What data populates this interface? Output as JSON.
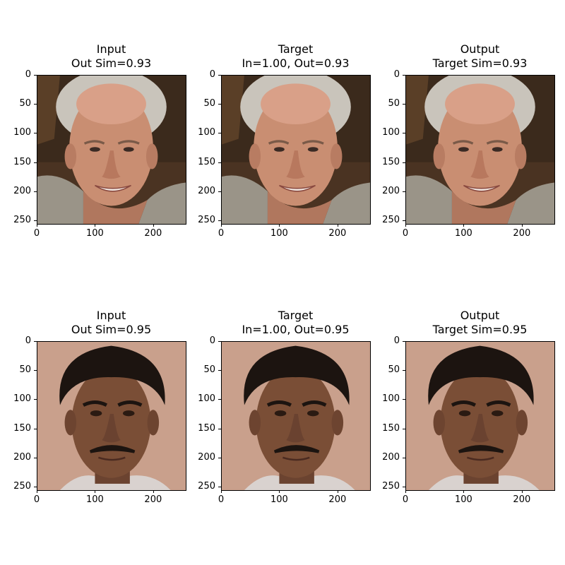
{
  "figure": {
    "rows": [
      {
        "panels": [
          {
            "title_line1": "Input",
            "title_line2": "Out Sim=0.93",
            "image": "elderly-man-face-photo"
          },
          {
            "title_line1": "Target",
            "title_line2": "In=1.00, Out=0.93",
            "image": "elderly-man-face-photo"
          },
          {
            "title_line1": "Output",
            "title_line2": "Target Sim=0.93",
            "image": "elderly-man-face-photo"
          }
        ]
      },
      {
        "panels": [
          {
            "title_line1": "Input",
            "title_line2": "Out Sim=0.95",
            "image": "man-with-mustache-face-photo"
          },
          {
            "title_line1": "Target",
            "title_line2": "In=1.00, Out=0.95",
            "image": "man-with-mustache-face-photo"
          },
          {
            "title_line1": "Output",
            "title_line2": "Target Sim=0.95",
            "image": "man-with-mustache-face-photo"
          }
        ]
      }
    ]
  },
  "chart_data": {
    "type": "image-grid",
    "grid": [
      2,
      3
    ],
    "xticks": [
      "0",
      "100",
      "200"
    ],
    "yticks": [
      "0",
      "50",
      "100",
      "150",
      "200",
      "250"
    ],
    "xlim": [
      0,
      256
    ],
    "ylim": [
      256,
      0
    ],
    "panels": [
      {
        "row": 0,
        "col": 0,
        "title": "Input\nOut Sim=0.93"
      },
      {
        "row": 0,
        "col": 1,
        "title": "Target\nIn=1.00, Out=0.93"
      },
      {
        "row": 0,
        "col": 2,
        "title": "Output\nTarget Sim=0.93"
      },
      {
        "row": 1,
        "col": 0,
        "title": "Input\nOut Sim=0.95"
      },
      {
        "row": 1,
        "col": 1,
        "title": "Target\nIn=1.00, Out=0.95"
      },
      {
        "row": 1,
        "col": 2,
        "title": "Output\nTarget Sim=0.95"
      }
    ]
  },
  "colors": {
    "row1_background": "#3b2a1c",
    "row1_skin": "#c98e72",
    "row1_hair": "#c9c4bb",
    "row1_shirt": "#9a9488",
    "row2_background": "#c9a08c",
    "row2_skin": "#7a4e36",
    "row2_hair": "#1c1410",
    "row2_shirt": "#d9d2cf"
  }
}
